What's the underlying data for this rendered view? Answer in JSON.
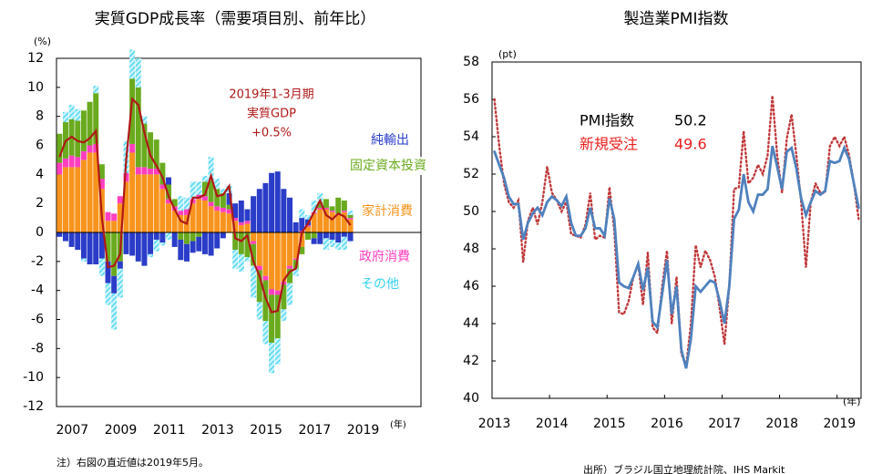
{
  "chart_data": [
    {
      "type": "stacked_bar_line",
      "title": "実質GDP成長率（需要項目別、前年比）",
      "y_unit": "(%)",
      "x_unit": "(年)",
      "annotation": [
        "2019年1-3月期",
        "実質GDP",
        "+0.5%"
      ],
      "categories": [
        "2007",
        null,
        null,
        null,
        null,
        null,
        null,
        null,
        "2009",
        null,
        null,
        null,
        null,
        null,
        null,
        null,
        "2011",
        null,
        null,
        null,
        null,
        null,
        null,
        null,
        "2013",
        null,
        null,
        null,
        null,
        null,
        null,
        null,
        "2015",
        null,
        null,
        null,
        null,
        null,
        null,
        null,
        "2017",
        null,
        null,
        null,
        null,
        null,
        null,
        null,
        "2019"
      ],
      "ylim": [
        -12,
        12
      ],
      "yticks": [
        -12,
        -10,
        -8,
        -6,
        -4,
        -2,
        0,
        2,
        4,
        6,
        8,
        10,
        12
      ],
      "series": [
        {
          "name": "家計消費",
          "color": "#f7941d",
          "values": [
            4,
            4.5,
            4.5,
            4.5,
            5,
            5.5,
            5.5,
            3,
            0.8,
            0.8,
            2,
            3.5,
            5.5,
            4,
            4,
            4,
            4,
            3,
            2,
            1.5,
            1.2,
            1.2,
            2,
            2.3,
            2.2,
            1.8,
            1.5,
            1.4,
            1.3,
            0.8,
            0.5,
            0.6,
            -0.6,
            -2.3,
            -3,
            -3.9,
            -4,
            -3.4,
            -2.3,
            -1.8,
            -1,
            0.4,
            1.3,
            1.6,
            1.6,
            1.4,
            1.2,
            1.4,
            0.9
          ]
        },
        {
          "name": "政府消費",
          "color": "#ff3fbf",
          "values": [
            0.8,
            0.6,
            0.8,
            0.7,
            0.6,
            0.5,
            0.6,
            0.7,
            0.6,
            0.5,
            0.5,
            0.6,
            0.6,
            0.5,
            0.5,
            0.4,
            0.4,
            0.3,
            0.3,
            0.3,
            0.3,
            0.4,
            0.3,
            0.3,
            0.3,
            0.3,
            0.3,
            0.3,
            0.3,
            0.2,
            0.2,
            0.2,
            -0.2,
            -0.3,
            -0.3,
            -0.4,
            -0.3,
            -0.2,
            -0.2,
            -0.1,
            0.1,
            0.1,
            0.1,
            0.1,
            0.1,
            0.1,
            0.1,
            0.1,
            0.1
          ]
        },
        {
          "name": "固定資本投資",
          "color": "#6aaa1e",
          "values": [
            2,
            2.5,
            2.5,
            2.5,
            2.8,
            3,
            3.5,
            1,
            -2,
            -3,
            -2,
            0,
            4.5,
            5.5,
            3,
            2.5,
            2,
            1.5,
            1,
            0.5,
            -0.5,
            -0.8,
            -0.6,
            -0.3,
            1,
            1.5,
            1.2,
            1,
            0.3,
            -1.2,
            -1.5,
            -1.7,
            -1.5,
            -2.2,
            -2.8,
            -3.3,
            -3,
            -1.7,
            -1,
            -0.6,
            -0.5,
            -0.5,
            -0.4,
            0.4,
            0.6,
            0.3,
            1.1,
            0.7,
            0.2
          ]
        },
        {
          "name": "純輸出",
          "color": "#2a3cc8",
          "values": [
            -0.3,
            -0.6,
            -1,
            -1.2,
            -1.8,
            -2.2,
            -2.2,
            -1.8,
            -1.5,
            -1.2,
            -0.5,
            -1.5,
            -1.6,
            -2,
            -2.3,
            -1.5,
            -0.5,
            -0.7,
            0.5,
            -1,
            -1.4,
            -1.2,
            -0.8,
            -1,
            -1.5,
            -1.6,
            -1.1,
            -0.4,
            0.8,
            1,
            1.5,
            0.8,
            2.5,
            3,
            3.4,
            4.1,
            4.2,
            3,
            2.4,
            0.7,
            0.9,
            0.4,
            -0.4,
            -0.8,
            -0.4,
            -0.5,
            -0.7,
            -0.3,
            -0.6
          ]
        },
        {
          "name": "その他",
          "color": "#33d0f0",
          "values": [
            0,
            0.7,
            1,
            0.8,
            -0.2,
            0,
            0.5,
            -1.2,
            -1.5,
            -2.5,
            -2,
            2.2,
            2,
            2,
            0.5,
            -0.2,
            -0.8,
            -0.2,
            -0.5,
            0,
            1,
            0.8,
            1.2,
            0.9,
            0.4,
            1.6,
            0.7,
            0.3,
            0.5,
            -1.3,
            -1.2,
            -0.3,
            -2.2,
            -1.2,
            -1.6,
            -2.1,
            -1.8,
            -0.8,
            -1.5,
            -0.5,
            0.6,
            0.3,
            0.8,
            0.6,
            -0.8,
            -0.5,
            -0.5,
            -0.9,
            0.3
          ]
        }
      ],
      "line": {
        "name": "実質GDP",
        "color": "#b01818",
        "values": [
          5.2,
          6.3,
          6.6,
          6.3,
          6.2,
          6.5,
          7,
          1,
          -2.4,
          -2.3,
          -1.5,
          5,
          9.2,
          8.8,
          6.9,
          5.3,
          4.6,
          3.8,
          2.5,
          1.6,
          0.8,
          0.6,
          2.4,
          2.4,
          2.6,
          3.9,
          2.5,
          2.6,
          3.2,
          -0.4,
          -0.6,
          -0.2,
          -2,
          -3,
          -4.5,
          -5.5,
          -5.4,
          -3.3,
          -2.7,
          -2.5,
          0,
          0.6,
          1.4,
          2.2,
          1.2,
          0.9,
          1.3,
          1.1,
          0.5
        ]
      }
    },
    {
      "type": "line",
      "title": "製造業PMI指数",
      "y_unit": "(pt)",
      "x_unit": "(年)",
      "categories": [
        "2013",
        null,
        null,
        null,
        null,
        null,
        null,
        null,
        null,
        null,
        null,
        null,
        "2014",
        null,
        null,
        null,
        null,
        null,
        null,
        null,
        null,
        null,
        null,
        null,
        "2015",
        null,
        null,
        null,
        null,
        null,
        null,
        null,
        null,
        null,
        null,
        null,
        "2016",
        null,
        null,
        null,
        null,
        null,
        null,
        null,
        null,
        null,
        null,
        null,
        "2017",
        null,
        null,
        null,
        null,
        null,
        null,
        null,
        null,
        null,
        null,
        null,
        "2018",
        null,
        null,
        null,
        null,
        null,
        null,
        null,
        null,
        null,
        null,
        null,
        "2019",
        null,
        null,
        null,
        null
      ],
      "ylim": [
        40,
        58
      ],
      "yticks": [
        40,
        42,
        44,
        46,
        48,
        50,
        52,
        54,
        56,
        58
      ],
      "series": [
        {
          "name": "PMI指数",
          "color": "#4f81bd",
          "dash": false,
          "last_label": "50.2",
          "label_color": "#000000",
          "values": [
            53.2,
            52.5,
            51.8,
            50.8,
            50.4,
            50.4,
            48.5,
            49.4,
            49.9,
            50.2,
            49.8,
            50.5,
            50.8,
            50.6,
            50.3,
            50.8,
            49.4,
            48.7,
            48.7,
            49.1,
            50.2,
            49.1,
            49.1,
            48.7,
            50.7,
            49.6,
            46.2,
            46,
            45.9,
            46.5,
            47.2,
            45.8,
            47,
            44.1,
            43.8,
            45.6,
            47.4,
            44.5,
            46,
            42.6,
            41.6,
            43.2,
            46,
            45.7,
            46,
            46.3,
            46.2,
            45.2,
            44,
            46,
            49.6,
            50.1,
            52,
            50.5,
            50,
            50.9,
            50.9,
            51.2,
            53.5,
            52.4,
            51.2,
            53.2,
            53.4,
            52.3,
            50.7,
            49.8,
            50.5,
            51.1,
            50.9,
            51.1,
            52.7,
            52.6,
            52.7,
            53.4,
            52.8,
            51.5,
            50.2
          ]
        },
        {
          "name": "新規受注",
          "color": "#c0393b",
          "dash": true,
          "last_label": "49.6",
          "label_color": "#e8201e",
          "values": [
            56,
            53.5,
            51.5,
            50.5,
            50.2,
            50.6,
            47.3,
            49.5,
            50.2,
            49.3,
            50.5,
            52.4,
            51,
            50.6,
            50,
            50.5,
            48.8,
            48.7,
            48.6,
            49.3,
            51,
            48.5,
            48.7,
            48.6,
            51.3,
            49,
            44.6,
            44.5,
            45.2,
            46.5,
            47.2,
            45,
            47.8,
            43.8,
            43.5,
            46,
            47.9,
            44,
            46.5,
            42.4,
            41.7,
            44,
            48.2,
            47,
            47.9,
            47.4,
            46.5,
            44.8,
            42.9,
            46,
            51.2,
            51.3,
            54.3,
            51.5,
            51.8,
            52.5,
            52,
            53,
            56.2,
            53,
            51,
            53.9,
            55.2,
            53,
            50.5,
            47,
            50.5,
            51.5,
            51,
            51,
            53.5,
            54,
            53.5,
            54,
            53,
            51.5,
            49.6
          ]
        }
      ]
    }
  ],
  "notes": {
    "note": "注）右図の直近値は2019年5月。",
    "source": "出所）ブラジル国立地理統計院、IHS Markit"
  }
}
